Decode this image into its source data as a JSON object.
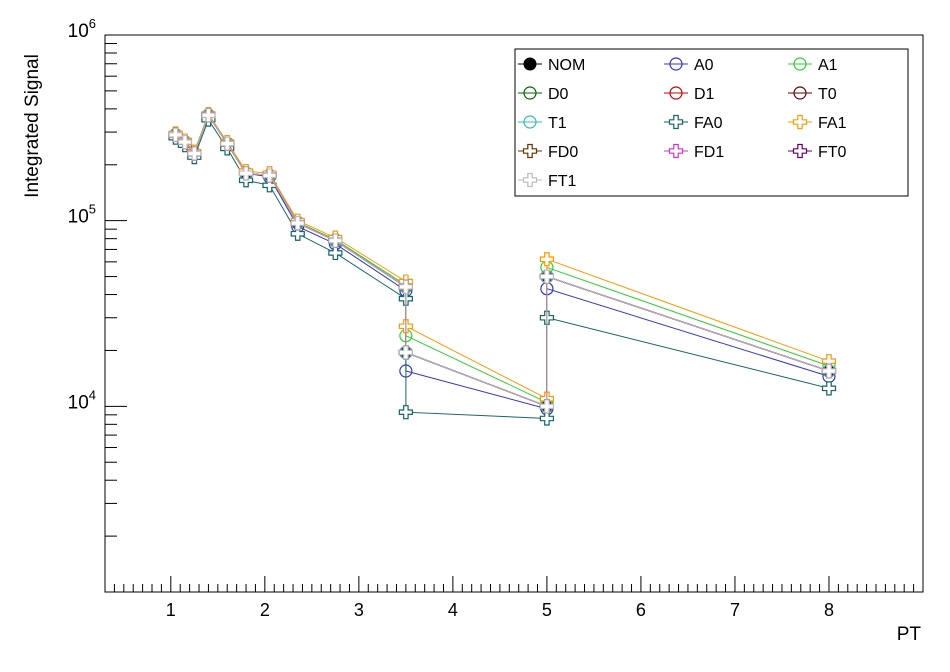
{
  "chart_data": {
    "type": "line",
    "title": "",
    "xlabel": "PT",
    "ylabel": "Integrated  Signal",
    "yscale": "log",
    "ylim": [
      1000,
      1000000
    ],
    "xlim": [
      0.3,
      9.0
    ],
    "x_tick_labels": [
      "1",
      "2",
      "3",
      "4",
      "5",
      "6",
      "7",
      "8"
    ],
    "y_tick_labels": [
      {
        "base": "10",
        "exp": "4",
        "value": 10000
      },
      {
        "base": "10",
        "exp": "5",
        "value": 100000
      },
      {
        "base": "10",
        "exp": "6",
        "value": 1000000
      }
    ],
    "legend_position": "top-right",
    "x": [
      1.05,
      1.15,
      1.25,
      1.4,
      1.6,
      1.8,
      2.05,
      2.35,
      2.75,
      3.5,
      3.5,
      5.0,
      5.0,
      8.0
    ],
    "series": [
      {
        "name": "NOM",
        "color": "#000000",
        "marker": "filled-circle",
        "values": [
          290000,
          265000,
          230000,
          370000,
          260000,
          180000,
          175000,
          97000,
          78000,
          44000,
          19500,
          10000,
          50000,
          15500
        ]
      },
      {
        "name": "A0",
        "color": "#3333cc",
        "marker": "open-circle",
        "values": [
          290000,
          265000,
          230000,
          370000,
          260000,
          180000,
          172000,
          93000,
          75000,
          42000,
          15500,
          9700,
          43000,
          14500
        ]
      },
      {
        "name": "A1",
        "color": "#33cc33",
        "marker": "open-circle",
        "values": [
          290000,
          265000,
          230000,
          370000,
          260000,
          180000,
          175000,
          98000,
          79000,
          45000,
          24000,
          10500,
          56000,
          16500
        ]
      },
      {
        "name": "D0",
        "color": "#006600",
        "marker": "open-circle",
        "values": [
          290000,
          265000,
          230000,
          370000,
          260000,
          180000,
          175000,
          97000,
          78000,
          44000,
          19500,
          10000,
          50000,
          15500
        ]
      },
      {
        "name": "D1",
        "color": "#cc0000",
        "marker": "open-circle",
        "values": [
          290000,
          265000,
          230000,
          370000,
          260000,
          180000,
          175000,
          97000,
          78000,
          44000,
          19500,
          10000,
          50000,
          15500
        ]
      },
      {
        "name": "T0",
        "color": "#660000",
        "marker": "open-circle",
        "values": [
          290000,
          265000,
          230000,
          370000,
          260000,
          180000,
          175000,
          97000,
          78000,
          44000,
          19500,
          10000,
          50000,
          15500
        ]
      },
      {
        "name": "T1",
        "color": "#33bbbb",
        "marker": "open-circle",
        "values": [
          290000,
          265000,
          230000,
          370000,
          260000,
          180000,
          175000,
          97000,
          78000,
          44000,
          19500,
          10000,
          50000,
          15500
        ]
      },
      {
        "name": "FA0",
        "color": "#116666",
        "marker": "open-cross",
        "values": [
          280000,
          255000,
          220000,
          350000,
          245000,
          165000,
          155000,
          85000,
          67000,
          38000,
          9300,
          8600,
          30000,
          12500
        ]
      },
      {
        "name": "FA1",
        "color": "#ff9900",
        "marker": "open-cross",
        "values": [
          295000,
          270000,
          235000,
          375000,
          265000,
          185000,
          180000,
          100000,
          81000,
          47000,
          27000,
          11000,
          62000,
          17500
        ]
      },
      {
        "name": "FD0",
        "color": "#663300",
        "marker": "open-cross",
        "values": [
          290000,
          265000,
          230000,
          370000,
          260000,
          180000,
          175000,
          97000,
          78000,
          44000,
          19500,
          10000,
          50000,
          15500
        ]
      },
      {
        "name": "FD1",
        "color": "#cc33cc",
        "marker": "open-cross",
        "values": [
          290000,
          265000,
          230000,
          370000,
          260000,
          180000,
          175000,
          97000,
          78000,
          44000,
          19500,
          10000,
          50000,
          15500
        ]
      },
      {
        "name": "FT0",
        "color": "#660066",
        "marker": "open-cross",
        "values": [
          290000,
          265000,
          230000,
          370000,
          260000,
          180000,
          175000,
          97000,
          78000,
          44000,
          19500,
          10000,
          50000,
          15500
        ]
      },
      {
        "name": "FT1",
        "color": "#bbbbbb",
        "marker": "open-cross",
        "values": [
          290000,
          265000,
          230000,
          370000,
          260000,
          180000,
          175000,
          97000,
          78000,
          44000,
          19500,
          10000,
          50000,
          15500
        ]
      }
    ]
  }
}
